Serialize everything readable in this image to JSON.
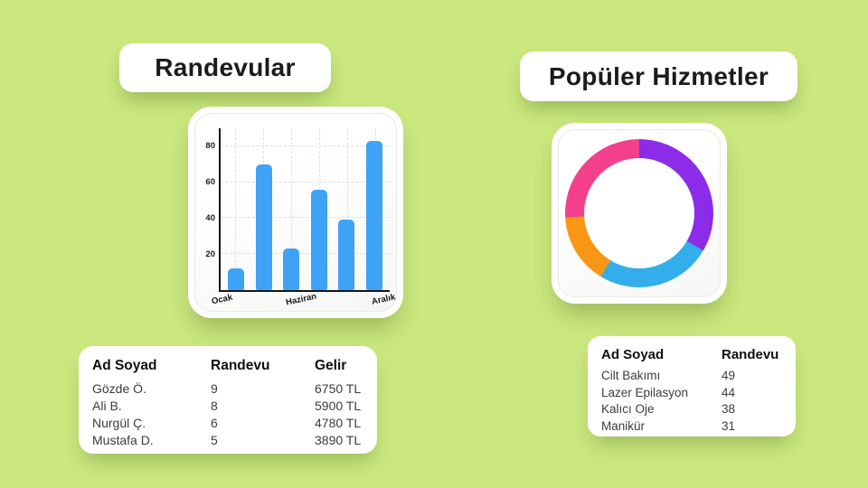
{
  "page": {
    "background_color": "#CAE87E"
  },
  "left_panel": {
    "title": "Randevular",
    "table": {
      "headers": [
        "Ad Soyad",
        "Randevu",
        "Gelir"
      ],
      "rows": [
        [
          "Gözde Ö.",
          "9",
          "6750 TL"
        ],
        [
          "Ali B.",
          "8",
          "5900 TL"
        ],
        [
          "Nurgül Ç.",
          "6",
          "4780 TL"
        ],
        [
          "Mustafa D.",
          "5",
          "3890 TL"
        ]
      ]
    }
  },
  "right_panel": {
    "title": "Popüler Hizmetler",
    "table": {
      "headers": [
        "Ad Soyad",
        "Randevu"
      ],
      "rows": [
        [
          "Cilt Bakımı",
          "49"
        ],
        [
          "Lazer Epilasyon",
          "44"
        ],
        [
          "Kalıcı Oje",
          "38"
        ],
        [
          "Manikür",
          "31"
        ]
      ]
    }
  },
  "chart_data": [
    {
      "type": "bar",
      "title": "Randevular",
      "values": [
        12,
        70,
        23,
        56,
        39,
        83
      ],
      "x_tick_labels": [
        "Ocak",
        "Haziran",
        "Aralık"
      ],
      "y_ticks": [
        20,
        40,
        60,
        80
      ],
      "ylim": [
        0,
        90
      ],
      "bar_color": "#3EA2F5",
      "grid": "dashed",
      "legend": "none"
    },
    {
      "type": "donut",
      "title": "Popüler Hizmetler",
      "start_angle_deg": 0,
      "direction": "clockwise",
      "hole_ratio": 0.74,
      "segments": [
        {
          "color": "#8C2BE8",
          "percent": 33.4
        },
        {
          "color": "#34AEEA",
          "percent": 25.3
        },
        {
          "color": "#F99616",
          "percent": 15.4
        },
        {
          "color": "#F43F8C",
          "percent": 25.9
        }
      ]
    }
  ]
}
